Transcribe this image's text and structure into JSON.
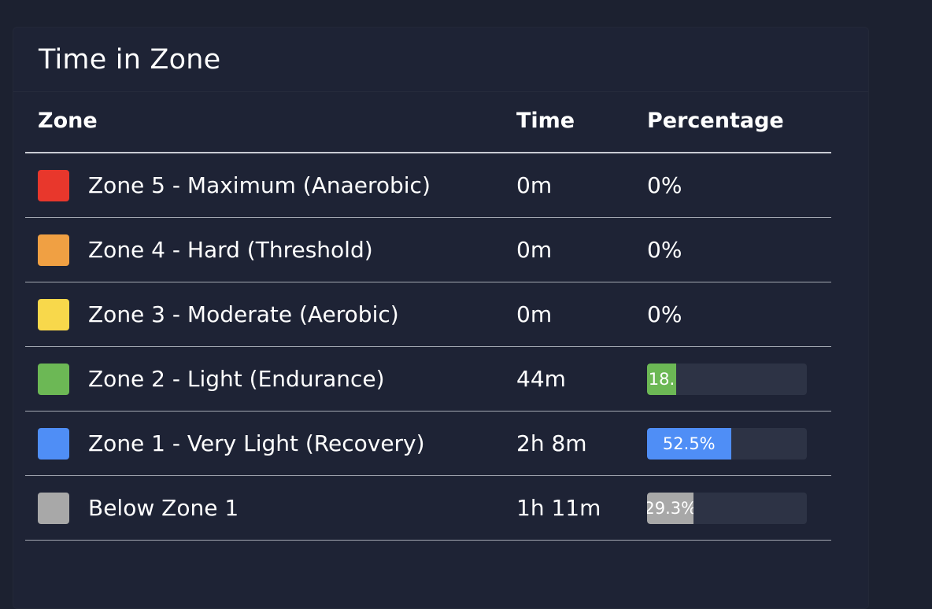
{
  "card": {
    "title": "Time in Zone"
  },
  "table": {
    "headers": {
      "zone": "Zone",
      "time": "Time",
      "percentage": "Percentage"
    },
    "rows": [
      {
        "zone": "Zone 5 - Maximum (Anaerobic)",
        "color": "#e8372c",
        "time": "0m",
        "percentage": "0%",
        "fraction": 0,
        "show_bar": false
      },
      {
        "zone": "Zone 4 - Hard (Threshold)",
        "color": "#f0a043",
        "time": "0m",
        "percentage": "0%",
        "fraction": 0,
        "show_bar": false
      },
      {
        "zone": "Zone 3 - Moderate (Aerobic)",
        "color": "#f8d84b",
        "time": "0m",
        "percentage": "0%",
        "fraction": 0,
        "show_bar": false
      },
      {
        "zone": "Zone 2 - Light (Endurance)",
        "color": "#6cb855",
        "time": "44m",
        "percentage": "18.",
        "fraction": 0.182,
        "show_bar": true
      },
      {
        "zone": "Zone 1 - Very Light (Recovery)",
        "color": "#4f8ef6",
        "time": "2h 8m",
        "percentage": "52.5%",
        "fraction": 0.525,
        "show_bar": true
      },
      {
        "zone": "Below Zone 1",
        "color": "#a8a8a8",
        "time": "1h 11m",
        "percentage": "29.3%",
        "fraction": 0.293,
        "show_bar": true
      }
    ]
  }
}
